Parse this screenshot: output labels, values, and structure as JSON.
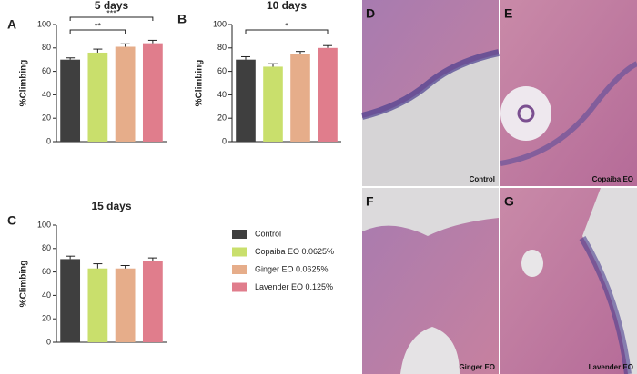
{
  "legend": [
    {
      "name": "Control",
      "color": "#3f3f3f"
    },
    {
      "name": "Copaiba EO 0.0625%",
      "color": "#c9df6c"
    },
    {
      "name": "Ginger EO 0.0625%",
      "color": "#e6ad8a"
    },
    {
      "name": "Lavender EO 0.125%",
      "color": "#e07d8c"
    }
  ],
  "chart_data": [
    {
      "type": "bar",
      "panel": "A",
      "title": "5 days",
      "ylabel": "%Climbing",
      "values": [
        70,
        76,
        81,
        84
      ],
      "errors": [
        1.5,
        3,
        2.5,
        2.5
      ],
      "ylim": [
        0,
        100
      ],
      "yticks": [
        0,
        20,
        40,
        60,
        80,
        100
      ],
      "significance": [
        {
          "from": 0,
          "to": 2,
          "label": "**"
        },
        {
          "from": 0,
          "to": 3,
          "label": "***"
        }
      ]
    },
    {
      "type": "bar",
      "panel": "B",
      "title": "10 days",
      "ylabel": "%Climbing",
      "values": [
        70,
        64,
        75,
        80
      ],
      "errors": [
        2.5,
        2.5,
        2,
        2
      ],
      "ylim": [
        0,
        100
      ],
      "yticks": [
        0,
        20,
        40,
        60,
        80,
        100
      ],
      "significance": [
        {
          "from": 0,
          "to": 3,
          "label": "*"
        }
      ]
    },
    {
      "type": "bar",
      "panel": "C",
      "title": "15 days",
      "ylabel": "%Climbing",
      "values": [
        71,
        63,
        63,
        69
      ],
      "errors": [
        2.5,
        4,
        2.5,
        3
      ],
      "ylim": [
        0,
        100
      ],
      "yticks": [
        0,
        20,
        40,
        60,
        80,
        100
      ],
      "significance": []
    }
  ],
  "images": [
    {
      "panel": "D",
      "caption": "Control"
    },
    {
      "panel": "E",
      "caption": "Copaiba EO"
    },
    {
      "panel": "F",
      "caption": "Ginger EO"
    },
    {
      "panel": "G",
      "caption": "Lavender EO"
    }
  ]
}
